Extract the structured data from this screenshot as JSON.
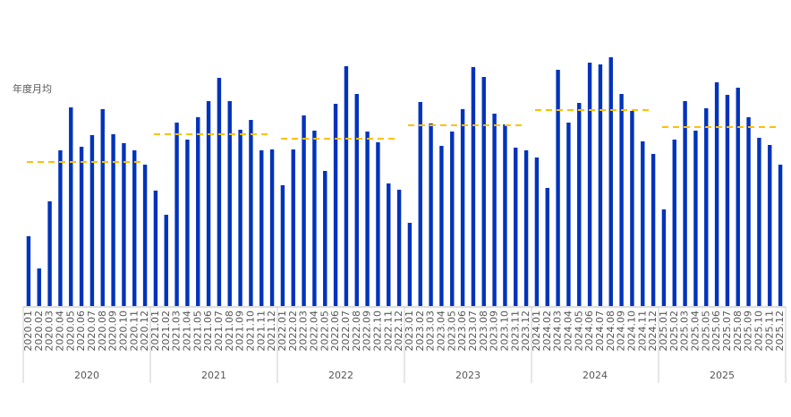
{
  "chart_data": {
    "type": "bar",
    "categories": [
      "2020.01",
      "2020.02",
      "2020.03",
      "2020.04",
      "2020.05",
      "2020.06",
      "2020.07",
      "2020.08",
      "2020.09",
      "2020.10",
      "2020.11",
      "2020.12",
      "2021.01",
      "2021.02",
      "2021.03",
      "2021.04",
      "2021.05",
      "2021.06",
      "2021.07",
      "2021.08",
      "2021.09",
      "2021.10",
      "2021.11",
      "2021.12",
      "2022.01",
      "2022.02",
      "2022.03",
      "2022.04",
      "2022.05",
      "2022.06",
      "2022.07",
      "2022.08",
      "2022.09",
      "2022.10",
      "2022.11",
      "2022.12",
      "2023.01",
      "2023.02",
      "2023.03",
      "2023.04",
      "2023.05",
      "2023.06",
      "2023.07",
      "2023.08",
      "2023.09",
      "2023.10",
      "2023.11",
      "2023.12",
      "2024.01",
      "2024.02",
      "2024.03",
      "2024.04",
      "2024.05",
      "2024.06",
      "2024.07",
      "2024.08",
      "2024.09",
      "2024.10",
      "2024.11",
      "2024.12",
      "2025.01",
      "2025.02",
      "2025.03",
      "2025.04",
      "2025.05",
      "2025.06",
      "2025.07",
      "2025.08",
      "2025.09",
      "2025.10",
      "2025.11",
      "2025.12"
    ],
    "values": [
      78,
      42,
      117,
      174,
      222,
      178,
      191,
      220,
      192,
      182,
      174,
      158,
      129,
      102,
      205,
      186,
      211,
      229,
      255,
      229,
      197,
      208,
      174,
      175,
      135,
      175,
      213,
      196,
      151,
      226,
      268,
      237,
      195,
      183,
      137,
      130,
      93,
      228,
      204,
      179,
      195,
      220,
      267,
      256,
      215,
      203,
      177,
      174,
      166,
      132,
      264,
      205,
      227,
      272,
      270,
      278,
      237,
      218,
      184,
      170,
      108,
      186,
      229,
      196,
      221,
      250,
      236,
      244,
      211,
      188,
      180,
      158
    ],
    "color": "#0033bb",
    "groups": [
      "2020",
      "2021",
      "2022",
      "2023",
      "2024",
      "2025"
    ],
    "averages": {
      "name": "年度月均",
      "color": "#ffc000",
      "values": [
        161,
        192,
        187,
        202,
        219,
        200
      ]
    },
    "ylim": [
      0,
      280
    ]
  }
}
